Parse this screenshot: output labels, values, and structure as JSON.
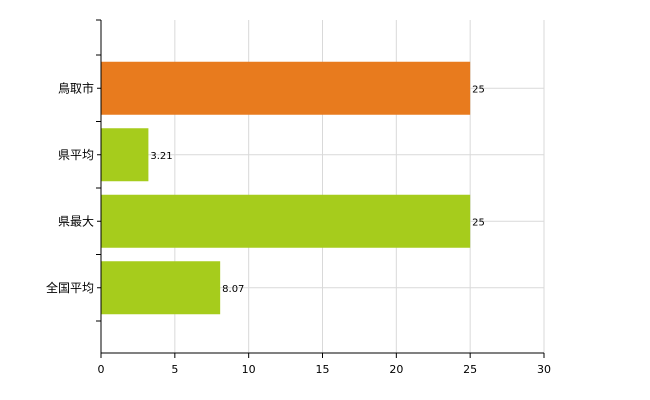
{
  "chart_data": {
    "type": "bar",
    "orientation": "horizontal",
    "categories": [
      "鳥取市",
      "県平均",
      "県最大",
      "全国平均"
    ],
    "values": [
      25,
      3.21,
      25,
      8.07
    ],
    "data_labels": [
      "25",
      "3.21",
      "25",
      "8.07"
    ],
    "bar_colors": [
      "#e87b1e",
      "#a6cc1c",
      "#a6cc1c",
      "#a6cc1c"
    ],
    "xlim": [
      0,
      30
    ],
    "xticks": [
      0,
      5,
      10,
      15,
      20,
      25,
      30
    ],
    "grid": true,
    "legend": "none",
    "title": "",
    "xlabel": "",
    "ylabel": ""
  }
}
